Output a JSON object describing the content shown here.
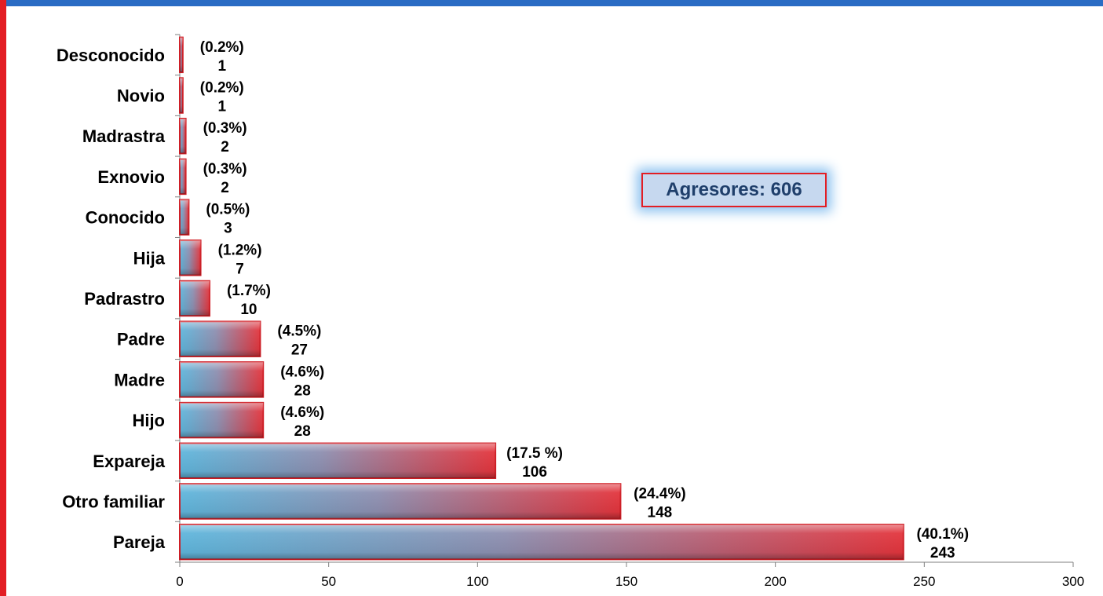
{
  "colors": {
    "frame_top": "#2a6cc4",
    "frame_left": "#e31e24",
    "bar_left": "#5fb6dc",
    "bar_right": "#e3353d",
    "bar_border": "#d01e26"
  },
  "annotation": {
    "text": "Agresores: 606"
  },
  "chart_data": {
    "type": "bar",
    "orientation": "horizontal",
    "title": "",
    "xlabel": "",
    "ylabel": "",
    "xlim": [
      0,
      300
    ],
    "xticks": [
      0,
      50,
      100,
      150,
      200,
      250,
      300
    ],
    "grid": false,
    "categories": [
      "Desconocido",
      "Novio",
      "Madrastra",
      "Exnovio",
      "Conocido",
      "Hija",
      "Padrastro",
      "Padre",
      "Madre",
      "Hijo",
      "Expareja",
      "Otro familiar",
      "Pareja"
    ],
    "values": [
      1,
      1,
      2,
      2,
      3,
      7,
      10,
      27,
      28,
      28,
      106,
      148,
      243
    ],
    "percent_labels": [
      "(0.2%)",
      "(0.2%)",
      "(0.3%)",
      "(0.3%)",
      "(0.5%)",
      "(1.2%)",
      "(1.7%)",
      "(4.5%)",
      "(4.6%)",
      "(4.6%)",
      "(17.5 %)",
      "(24.4%)",
      "(40.1%)"
    ]
  }
}
